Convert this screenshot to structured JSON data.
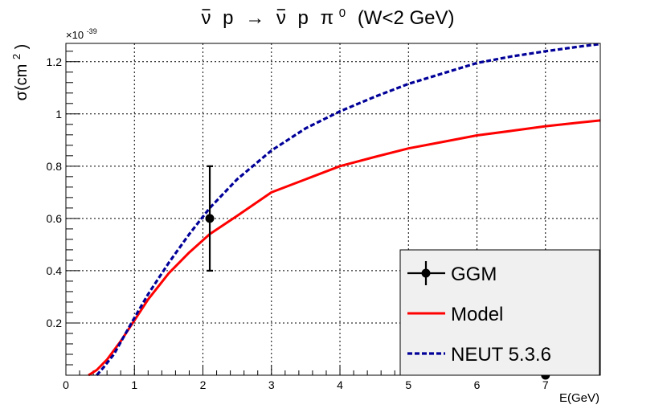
{
  "chart_data": {
    "type": "line",
    "title": {
      "nubar1": "ν",
      "p1": "p",
      "arrow": "→",
      "nubar2": "ν",
      "p2": "p",
      "pi": "π",
      "pi_sup": "0",
      "cut": "(W<2 GeV)"
    },
    "xlabel": "E(GeV)",
    "ylabel": {
      "base": "σ(cm",
      "sup": "2",
      "close": ")"
    },
    "y_exponent": {
      "base": "×10",
      "sup": "-39"
    },
    "xlim": [
      0,
      7.8
    ],
    "ylim": [
      0,
      1.27
    ],
    "xticks": [
      0,
      1,
      2,
      3,
      4,
      5,
      6,
      7
    ],
    "xtick_labels": [
      "0",
      "1",
      "2",
      "3",
      "4",
      "5",
      "6",
      "7"
    ],
    "yticks": [
      0.2,
      0.4,
      0.6,
      0.8,
      1.0,
      1.2
    ],
    "ytick_labels": [
      "0.2",
      "0.4",
      "0.6",
      "0.8",
      "1",
      "1.2"
    ],
    "grid": true,
    "legend_position": "bottom-right",
    "series": [
      {
        "name": "GGM",
        "kind": "points",
        "color": "#000000",
        "points": [
          {
            "x": 2.1,
            "y": 0.6,
            "err_low": 0.2,
            "err_high": 0.2
          },
          {
            "x": 7.0,
            "y": 0.0
          }
        ]
      },
      {
        "name": "Model",
        "kind": "line",
        "color": "#ff0000",
        "style": "solid",
        "x": [
          0.33,
          0.45,
          0.6,
          0.8,
          1.0,
          1.2,
          1.5,
          1.8,
          2.1,
          2.5,
          3.0,
          3.5,
          4.0,
          4.5,
          5.0,
          5.5,
          6.0,
          6.5,
          7.0,
          7.5,
          7.8
        ],
        "y": [
          0.0,
          0.02,
          0.06,
          0.13,
          0.21,
          0.29,
          0.39,
          0.47,
          0.54,
          0.61,
          0.7,
          0.75,
          0.8,
          0.835,
          0.868,
          0.893,
          0.918,
          0.935,
          0.953,
          0.967,
          0.975
        ]
      },
      {
        "name": "NEUT 5.3.6",
        "kind": "line",
        "color": "#000099",
        "style": "dashed",
        "x": [
          0.45,
          0.55,
          0.7,
          0.85,
          1.0,
          1.2,
          1.5,
          1.8,
          2.1,
          2.5,
          3.0,
          3.5,
          4.0,
          4.5,
          5.0,
          5.5,
          6.0,
          6.5,
          7.0,
          7.5,
          7.8
        ],
        "y": [
          0.0,
          0.03,
          0.08,
          0.15,
          0.22,
          0.31,
          0.43,
          0.54,
          0.64,
          0.75,
          0.86,
          0.945,
          1.01,
          1.065,
          1.115,
          1.155,
          1.195,
          1.22,
          1.24,
          1.258,
          1.268
        ]
      }
    ]
  }
}
